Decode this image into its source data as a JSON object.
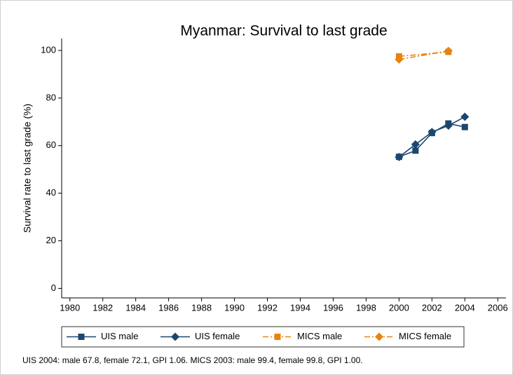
{
  "chart_data": {
    "type": "line",
    "title": "Myanmar: Survival to last grade",
    "y_label": "Survival rate to last grade (%)",
    "note": "UIS 2004: male 67.8, female 72.1, GPI 1.06. MICS 2003: male 99.4, female 99.8, GPI 1.00.",
    "xlim": [
      1979.5,
      2006.5
    ],
    "ylim": [
      -4,
      105
    ],
    "xticks": [
      1980,
      1982,
      1984,
      1986,
      1988,
      1990,
      1992,
      1994,
      1996,
      1998,
      2000,
      2002,
      2004,
      2006
    ],
    "yticks": [
      0,
      20,
      40,
      60,
      80,
      100
    ],
    "series": [
      {
        "name": "UIS male",
        "color": "#1a476f",
        "marker": "square",
        "line_style": "solid",
        "x": [
          2000,
          2001,
          2002,
          2003,
          2004
        ],
        "values": [
          55.3,
          57.9,
          65.3,
          69.3,
          67.8
        ]
      },
      {
        "name": "UIS female",
        "color": "#1a476f",
        "marker": "diamond",
        "line_style": "solid",
        "x": [
          2000,
          2001,
          2002,
          2003,
          2004
        ],
        "values": [
          55.2,
          60.5,
          65.7,
          68.4,
          72.1
        ]
      },
      {
        "name": "MICS male",
        "color": "#e8830e",
        "marker": "square",
        "line_style": "dash-dot",
        "x": [
          2000,
          2003
        ],
        "values": [
          97.5,
          99.4
        ]
      },
      {
        "name": "MICS female",
        "color": "#e8830e",
        "marker": "diamond",
        "line_style": "dash-dot",
        "x": [
          2000,
          2003
        ],
        "values": [
          96.2,
          99.8
        ]
      }
    ]
  }
}
